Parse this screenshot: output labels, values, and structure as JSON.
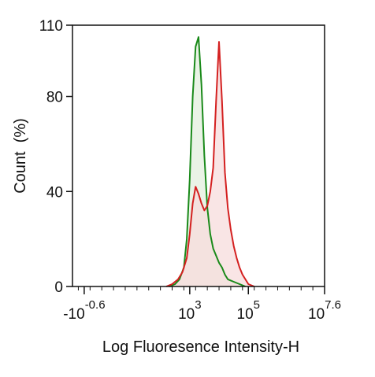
{
  "chart_data": {
    "type": "area",
    "title": "",
    "xlabel": "Log Fluoresence Intensity-H",
    "ylabel": "Count  (%)",
    "xscale": "log",
    "xlim": [
      -1.0,
      7.6
    ],
    "ylim": [
      0,
      110
    ],
    "grid": false,
    "legend": "none",
    "x_ticks": [
      {
        "value": -0.6,
        "base": "-10",
        "exp": "-0.6"
      },
      {
        "value": 3,
        "base": "10",
        "exp": "3"
      },
      {
        "value": 5,
        "base": "10",
        "exp": "5"
      },
      {
        "value": 7.6,
        "base": "10",
        "exp": "7.6"
      }
    ],
    "y_ticks": [
      {
        "value": 0,
        "label": "0"
      },
      {
        "value": 40,
        "label": "40"
      },
      {
        "value": 80,
        "label": "80"
      },
      {
        "value": 110,
        "label": "110"
      }
    ],
    "series": [
      {
        "color": "#1a8a1a",
        "fill": "#e3efdd",
        "x": [
          2.3,
          2.5,
          2.65,
          2.8,
          2.9,
          3.0,
          3.1,
          3.2,
          3.3,
          3.4,
          3.5,
          3.6,
          3.7,
          3.8,
          3.9,
          4.0,
          4.1,
          4.2,
          4.3,
          4.5,
          4.7,
          4.9
        ],
        "y": [
          0,
          1,
          3,
          8,
          20,
          45,
          80,
          101,
          105,
          85,
          55,
          33,
          22,
          16,
          13,
          10,
          8,
          5,
          3,
          2,
          1,
          0
        ]
      },
      {
        "color": "#d42020",
        "fill": "#f7dcdc",
        "x": [
          2.2,
          2.4,
          2.6,
          2.75,
          2.9,
          3.0,
          3.1,
          3.2,
          3.3,
          3.4,
          3.5,
          3.6,
          3.7,
          3.8,
          3.9,
          4.0,
          4.1,
          4.2,
          4.3,
          4.4,
          4.5,
          4.6,
          4.7,
          4.8,
          4.9,
          5.0,
          5.1,
          5.2
        ],
        "y": [
          0,
          1,
          3,
          6,
          12,
          22,
          35,
          42,
          39,
          35,
          32,
          34,
          40,
          50,
          78,
          103,
          78,
          48,
          33,
          24,
          17,
          12,
          8,
          5,
          3,
          1,
          0.5,
          0
        ]
      }
    ]
  }
}
